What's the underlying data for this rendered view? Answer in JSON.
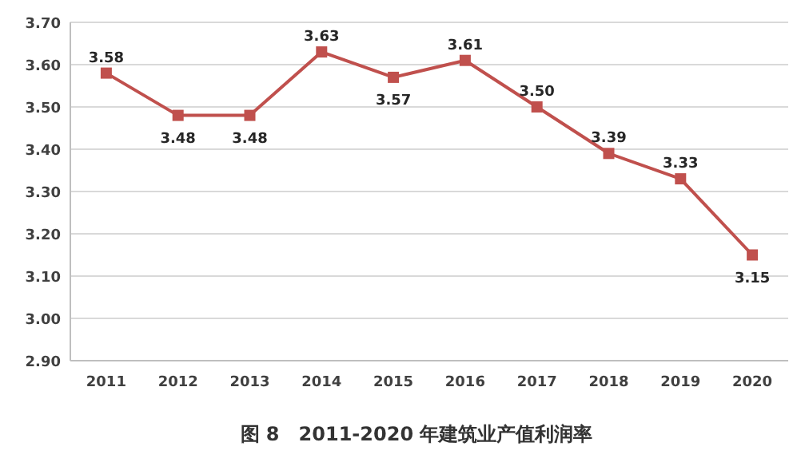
{
  "chart_data": {
    "type": "line",
    "title": "图 8　2011-2020 年建筑业产值利润率",
    "categories": [
      "2011",
      "2012",
      "2013",
      "2014",
      "2015",
      "2016",
      "2017",
      "2018",
      "2019",
      "2020"
    ],
    "series": [
      {
        "color": "#c0504d",
        "values": [
          3.58,
          3.48,
          3.48,
          3.63,
          3.57,
          3.61,
          3.5,
          3.39,
          3.33,
          3.15
        ],
        "value_labels": [
          "3.58",
          "3.48",
          "3.48",
          "3.63",
          "3.57",
          "3.61",
          "3.50",
          "3.39",
          "3.33",
          "3.15"
        ]
      }
    ],
    "ylim": [
      2.9,
      3.7
    ],
    "yticks": [
      {
        "value": 2.9,
        "label": "2.90"
      },
      {
        "value": 3.0,
        "label": "3.00"
      },
      {
        "value": 3.1,
        "label": "3.10"
      },
      {
        "value": 3.2,
        "label": "3.20"
      },
      {
        "value": 3.3,
        "label": "3.30"
      },
      {
        "value": 3.4,
        "label": "3.40"
      },
      {
        "value": 3.5,
        "label": "3.50"
      },
      {
        "value": 3.6,
        "label": "3.60"
      },
      {
        "value": 3.7,
        "label": "3.70"
      }
    ],
    "grid": "y",
    "marker": "square",
    "line_style": "solid"
  }
}
